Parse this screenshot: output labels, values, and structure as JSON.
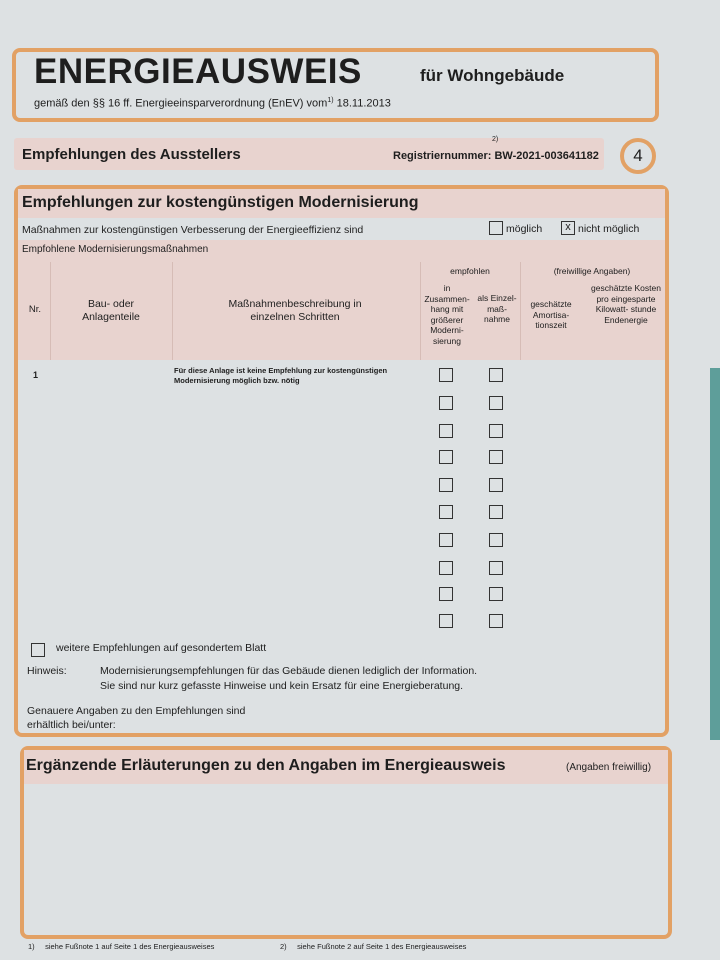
{
  "header": {
    "title": "ENERGIEAUSWEIS",
    "subtitle": "für Wohngebäude",
    "legal": "gemäß den §§ 16 ff. Energieeinsparverordnung (EnEV) vom",
    "footnote_mark": "1)",
    "date": "18.11.2013"
  },
  "section_bar": {
    "title": "Empfehlungen des Ausstellers",
    "reg_mark": "2)",
    "registration": "Registriernummer: BW-2021-003641182",
    "page_number": "4"
  },
  "recommendations": {
    "title": "Empfehlungen zur kostengünstigen Modernisierung",
    "measures_label": "Maßnahmen zur kostengünstigen Verbesserung der Energieeffizienz sind",
    "option_possible": {
      "label": "möglich",
      "checked": false,
      "mark": ""
    },
    "option_not_possible": {
      "label": "nicht möglich",
      "checked": true,
      "mark": "x"
    },
    "subheading": "Empfohlene Modernisierungsmaßnahmen",
    "columns": {
      "nr": "Nr.",
      "parts": "Bau- oder Anlagenteile",
      "description": "Maßnahmenbeschreibung in einzelnen Schritten",
      "recommended": "empfohlen",
      "combined": "in Zusammen- hang mit größerer Moderni- sierung",
      "single": "als Einzel- maß- nahme",
      "voluntary": "(freiwillige Angaben)",
      "amortisation": "geschätzte Amortisa- tionszeit",
      "cost": "geschätzte Kosten pro eingesparte Kilowatt- stunde Endenergie"
    },
    "rows": [
      {
        "nr": "1",
        "description": "Für diese Anlage ist keine Empfehlung zur kostengünstigen Modernisierung möglich bzw. nötig"
      },
      {
        "nr": "",
        "description": ""
      },
      {
        "nr": "",
        "description": ""
      },
      {
        "nr": "",
        "description": ""
      },
      {
        "nr": "",
        "description": ""
      },
      {
        "nr": "",
        "description": ""
      },
      {
        "nr": "",
        "description": ""
      },
      {
        "nr": "",
        "description": ""
      },
      {
        "nr": "",
        "description": ""
      },
      {
        "nr": "",
        "description": ""
      }
    ],
    "further": "weitere Empfehlungen auf gesondertem Blatt",
    "note_label": "Hinweis:",
    "note_line1": "Modernisierungsempfehlungen für das Gebäude dienen lediglich der Information.",
    "note_line2": "Sie sind nur kurz gefasste Hinweise und kein Ersatz für eine Energieberatung.",
    "details_line1": "Genauere Angaben zu den Empfehlungen sind",
    "details_line2": "erhältlich bei/unter:"
  },
  "explanations": {
    "title": "Ergänzende Erläuterungen zu den Angaben im Energieausweis",
    "note": "(Angaben freiwillig)"
  },
  "footnotes": [
    {
      "mark": "1)",
      "text": "siehe Fußnote 1 auf Seite 1 des Energieausweises"
    },
    {
      "mark": "2)",
      "text": "siehe Fußnote 2 auf Seite 1 des Energieausweises"
    }
  ],
  "colors": {
    "border": "#e2a165",
    "band": "#e8d3cf",
    "page": "#dde1e3"
  }
}
